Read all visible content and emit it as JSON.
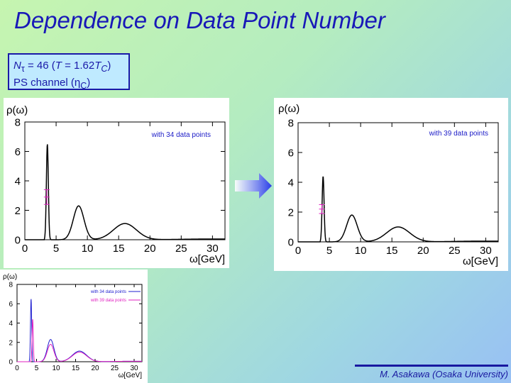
{
  "slide": {
    "title": "Dependence on Data Point Number",
    "info_line1": {
      "n": "N",
      "tau": "τ",
      "eq": " = 46 (",
      "T": "T",
      "mid": " = 1.62",
      "Tc": "T",
      "c": "C",
      "end": ")"
    },
    "info_line2": {
      "pre": "PS channel (",
      "eta": "η",
      "c": "C",
      "end": ")"
    },
    "credit": "M. Asakawa (Osaka University)"
  },
  "chart_data": [
    {
      "type": "line",
      "ylabel": "ρ(ω)",
      "xlabel": "ω[GeV]",
      "xlim": [
        0,
        32
      ],
      "ylim": [
        0,
        8
      ],
      "xticks": [
        0,
        5,
        10,
        15,
        20,
        25,
        30
      ],
      "yticks": [
        0,
        2,
        4,
        6,
        8
      ],
      "legend": "top-right",
      "series": [
        {
          "name": "with 34 data points",
          "color": "#000000",
          "peaks": [
            {
              "x": 3.6,
              "y": 6.5
            },
            {
              "x": 8.6,
              "y": 2.3
            },
            {
              "x": 16.0,
              "y": 1.1
            }
          ]
        }
      ],
      "error_bar": {
        "x": 3.5,
        "y": 2.9,
        "err": 0.5
      }
    },
    {
      "type": "line",
      "ylabel": "ρ(ω)",
      "xlabel": "ω[GeV]",
      "xlim": [
        0,
        32
      ],
      "ylim": [
        0,
        8
      ],
      "xticks": [
        0,
        5,
        10,
        15,
        20,
        25,
        30
      ],
      "yticks": [
        0,
        2,
        4,
        6,
        8
      ],
      "legend": "top-right",
      "series": [
        {
          "name": "with 39 data points",
          "color": "#000000",
          "peaks": [
            {
              "x": 4.0,
              "y": 4.4
            },
            {
              "x": 8.6,
              "y": 1.8
            },
            {
              "x": 16.0,
              "y": 1.0
            }
          ]
        }
      ],
      "error_bar": {
        "x": 3.8,
        "y": 2.2,
        "err": 0.3
      }
    },
    {
      "type": "line",
      "ylabel": "ρ(ω)",
      "xlabel": "ω[GeV]",
      "xlim": [
        0,
        32
      ],
      "ylim": [
        0,
        8
      ],
      "xticks": [
        0,
        5,
        10,
        15,
        20,
        25,
        30
      ],
      "yticks": [
        0,
        2,
        4,
        6,
        8
      ],
      "legend": "top-right",
      "series": [
        {
          "name": "with 34 data points",
          "color": "#2020d0",
          "peaks": [
            {
              "x": 3.6,
              "y": 6.5
            },
            {
              "x": 8.6,
              "y": 2.3
            },
            {
              "x": 16.0,
              "y": 1.1
            }
          ]
        },
        {
          "name": "with 39 data points",
          "color": "#e020c0",
          "peaks": [
            {
              "x": 4.0,
              "y": 4.4
            },
            {
              "x": 8.6,
              "y": 1.8
            },
            {
              "x": 16.0,
              "y": 1.0
            }
          ]
        }
      ]
    }
  ]
}
